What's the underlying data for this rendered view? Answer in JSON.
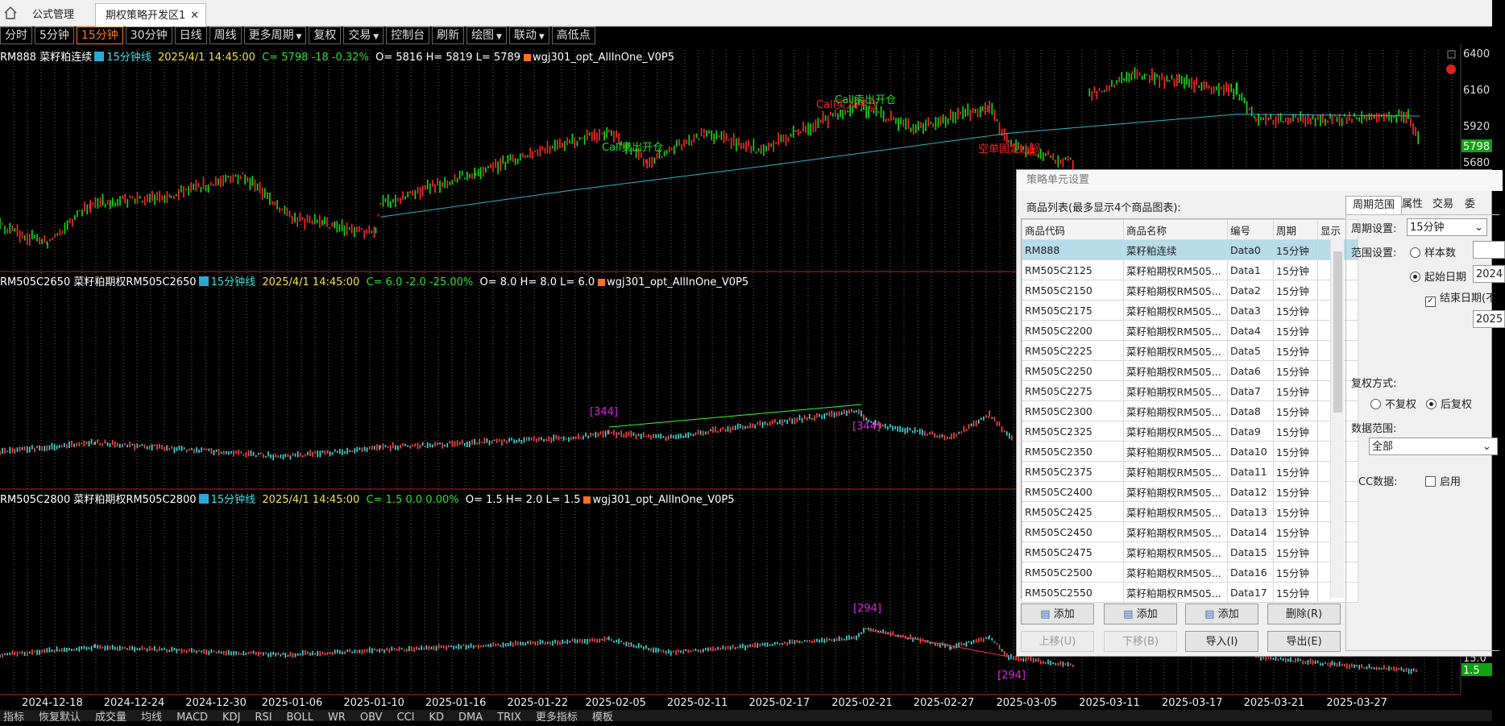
{
  "tabs": [
    "公式管理",
    "期权策略开发区1"
  ],
  "toolbar": [
    {
      "label": "分时"
    },
    {
      "label": "5分钟"
    },
    {
      "label": "15分钟",
      "active": true
    },
    {
      "label": "30分钟"
    },
    {
      "label": "日线"
    },
    {
      "label": "周线"
    },
    {
      "label": "更多周期",
      "dropdown": true
    },
    {
      "label": "复权"
    },
    {
      "label": "交易",
      "dropdown": true
    },
    {
      "label": "控制台"
    },
    {
      "label": "刷新"
    },
    {
      "label": "绘图",
      "dropdown": true
    },
    {
      "label": "联动",
      "dropdown": true
    },
    {
      "label": "高低点"
    }
  ],
  "panels": [
    {
      "title": "RM888 菜籽粕连续",
      "period": "15分钟线",
      "time": "2025/4/1 14:45:00",
      "quote": "C= 5798  -18  -0.32%",
      "ohl": "O= 5816 H= 5819 L= 5789",
      "strategy": "wgj301_opt_AllInOne_V0P5",
      "price_labels": [
        "6400",
        "6160",
        "5920",
        "5680"
      ],
      "last": "5798",
      "annotations": [
        {
          "text": "Call卖出开仓",
          "color": "#22dd22"
        },
        {
          "text": "Call买入平仓",
          "color": "#ff2020"
        },
        {
          "text": "Call卖出开仓",
          "color": "#22dd22"
        },
        {
          "text": "空单固定止损",
          "color": "#ff2020"
        }
      ]
    },
    {
      "title": "RM505C2650 菜籽粕期权RM505C2650",
      "period": "15分钟线",
      "time": "2025/4/1 14:45:00",
      "quote": "C= 6.0  -2.0  -25.00%",
      "ohl": "O= 8.0 H= 8.0 L= 6.0",
      "strategy": "wgj301_opt_AllInOne_V0P5",
      "price_labels": [],
      "annotations": [
        {
          "text": "[344]",
          "color": "#e020e0"
        },
        {
          "text": "[344]",
          "color": "#e020e0"
        }
      ]
    },
    {
      "title": "RM505C2800 菜籽粕期权RM505C2800",
      "period": "15分钟线",
      "time": "2025/4/1 14:45:00",
      "quote": "C= 1.5  0.0  0.00%",
      "ohl": "O= 1.5 H= 2.0 L= 1.5",
      "strategy": "wgj301_opt_AllInOne_V0P5",
      "price_labels": [
        "15.0"
      ],
      "last": "1.5",
      "annotations": [
        {
          "text": "[294]",
          "color": "#e020e0"
        },
        {
          "text": "[294]",
          "color": "#e020e0"
        }
      ]
    }
  ],
  "x_axis": [
    "2024-12-18",
    "2024-12-24",
    "2024-12-30",
    "2025-01-06",
    "2025-01-10",
    "2025-01-16",
    "2025-01-22",
    "2025-02-05",
    "2025-02-11",
    "2025-02-17",
    "2025-02-21",
    "2025-02-27",
    "2025-03-05",
    "2025-03-11",
    "2025-03-17",
    "2025-03-21",
    "2025-03-27"
  ],
  "dialog": {
    "title": "策略单元设置",
    "list_label": "商品列表(最多显示4个商品图表):",
    "columns": [
      "商品代码",
      "商品名称",
      "编号",
      "周期",
      "显示"
    ],
    "rows": [
      [
        "RM888",
        "菜籽粕连续",
        "Data0",
        "15分钟",
        true
      ],
      [
        "RM505C2125",
        "菜籽粕期权RM505...",
        "Data1",
        "15分钟",
        false
      ],
      [
        "RM505C2150",
        "菜籽粕期权RM505...",
        "Data2",
        "15分钟",
        false
      ],
      [
        "RM505C2175",
        "菜籽粕期权RM505...",
        "Data3",
        "15分钟",
        false
      ],
      [
        "RM505C2200",
        "菜籽粕期权RM505...",
        "Data4",
        "15分钟",
        false
      ],
      [
        "RM505C2225",
        "菜籽粕期权RM505...",
        "Data5",
        "15分钟",
        false
      ],
      [
        "RM505C2250",
        "菜籽粕期权RM505...",
        "Data6",
        "15分钟",
        false
      ],
      [
        "RM505C2275",
        "菜籽粕期权RM505...",
        "Data7",
        "15分钟",
        false
      ],
      [
        "RM505C2300",
        "菜籽粕期权RM505...",
        "Data8",
        "15分钟",
        false
      ],
      [
        "RM505C2325",
        "菜籽粕期权RM505...",
        "Data9",
        "15分钟",
        false
      ],
      [
        "RM505C2350",
        "菜籽粕期权RM505...",
        "Data10",
        "15分钟",
        false
      ],
      [
        "RM505C2375",
        "菜籽粕期权RM505...",
        "Data11",
        "15分钟",
        false
      ],
      [
        "RM505C2400",
        "菜籽粕期权RM505...",
        "Data12",
        "15分钟",
        false
      ],
      [
        "RM505C2425",
        "菜籽粕期权RM505...",
        "Data13",
        "15分钟",
        false
      ],
      [
        "RM505C2450",
        "菜籽粕期权RM505...",
        "Data14",
        "15分钟",
        false
      ],
      [
        "RM505C2475",
        "菜籽粕期权RM505...",
        "Data15",
        "15分钟",
        false
      ],
      [
        "RM505C2500",
        "菜籽粕期权RM505...",
        "Data16",
        "15分钟",
        false
      ],
      [
        "RM505C2550",
        "菜籽粕期权RM505...",
        "Data17",
        "15分钟",
        false
      ]
    ],
    "buttons": [
      {
        "label": "添加",
        "enabled": true
      },
      {
        "label": "添加",
        "enabled": true
      },
      {
        "label": "添加",
        "enabled": true
      },
      {
        "label": "删除(R)",
        "enabled": true
      },
      {
        "label": "上移(U)",
        "enabled": false
      },
      {
        "label": "下移(B)",
        "enabled": false
      },
      {
        "label": "导入(I)",
        "enabled": true
      },
      {
        "label": "导出(E)",
        "enabled": true
      }
    ],
    "side_tabs": [
      "周期范围",
      "属性",
      "交易",
      "委"
    ],
    "period_label": "周期设置:",
    "period_value": "15分钟",
    "range_label": "范围设置:",
    "sample_label": "样本数",
    "start_label": "起始日期",
    "start_value": "2024",
    "end_label": "结束日期(不",
    "end_value": "2025",
    "adjust_label": "复权方式:",
    "no_adjust": "不复权",
    "post_adjust": "后复权",
    "data_range_label": "数据范围:",
    "data_range_value": "全部",
    "cc_label": "CC数据:",
    "cc_enable": "启用"
  },
  "status_bar": [
    "指标",
    "恢复默认",
    "成交量",
    "均线",
    "MACD",
    "KDJ",
    "RSI",
    "BOLL",
    "WR",
    "OBV",
    "CCI",
    "KD",
    "DMA",
    "TRIX",
    "更多指标",
    "模板"
  ]
}
